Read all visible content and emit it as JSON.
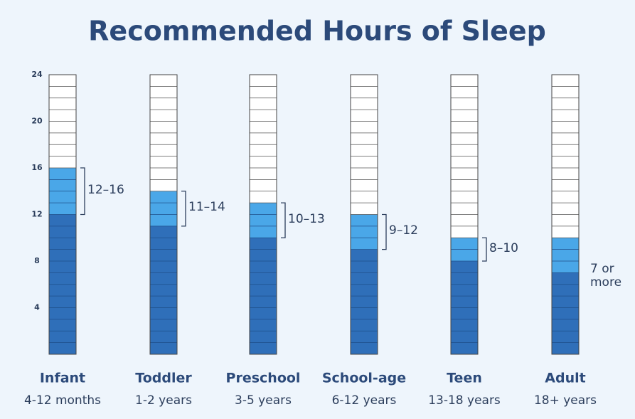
{
  "chart_data": {
    "type": "range-column",
    "title": "Recommended Hours of Sleep",
    "categories": [
      "Infant",
      "Toddler",
      "Preschool",
      "School-age",
      "Teen",
      "Adult"
    ],
    "subtitles": [
      "4-12 months",
      "1-2 years",
      "3-5 years",
      "6-12 years",
      "13-18 years",
      "18+ years"
    ],
    "low": [
      12,
      11,
      10,
      9,
      8,
      7
    ],
    "high": [
      16,
      14,
      13,
      12,
      10,
      10
    ],
    "value_labels": [
      "12–16",
      "11–14",
      "10–13",
      "9–12",
      "8–10",
      "7 or more"
    ],
    "bracket": [
      true,
      true,
      true,
      true,
      true,
      false
    ],
    "ylim": [
      0,
      24
    ],
    "yticks": [
      4,
      8,
      12,
      16,
      20,
      24
    ],
    "base_color": "#2f6fb9",
    "range_color": "#4aa7e8",
    "empty_color": "#ffffff"
  }
}
